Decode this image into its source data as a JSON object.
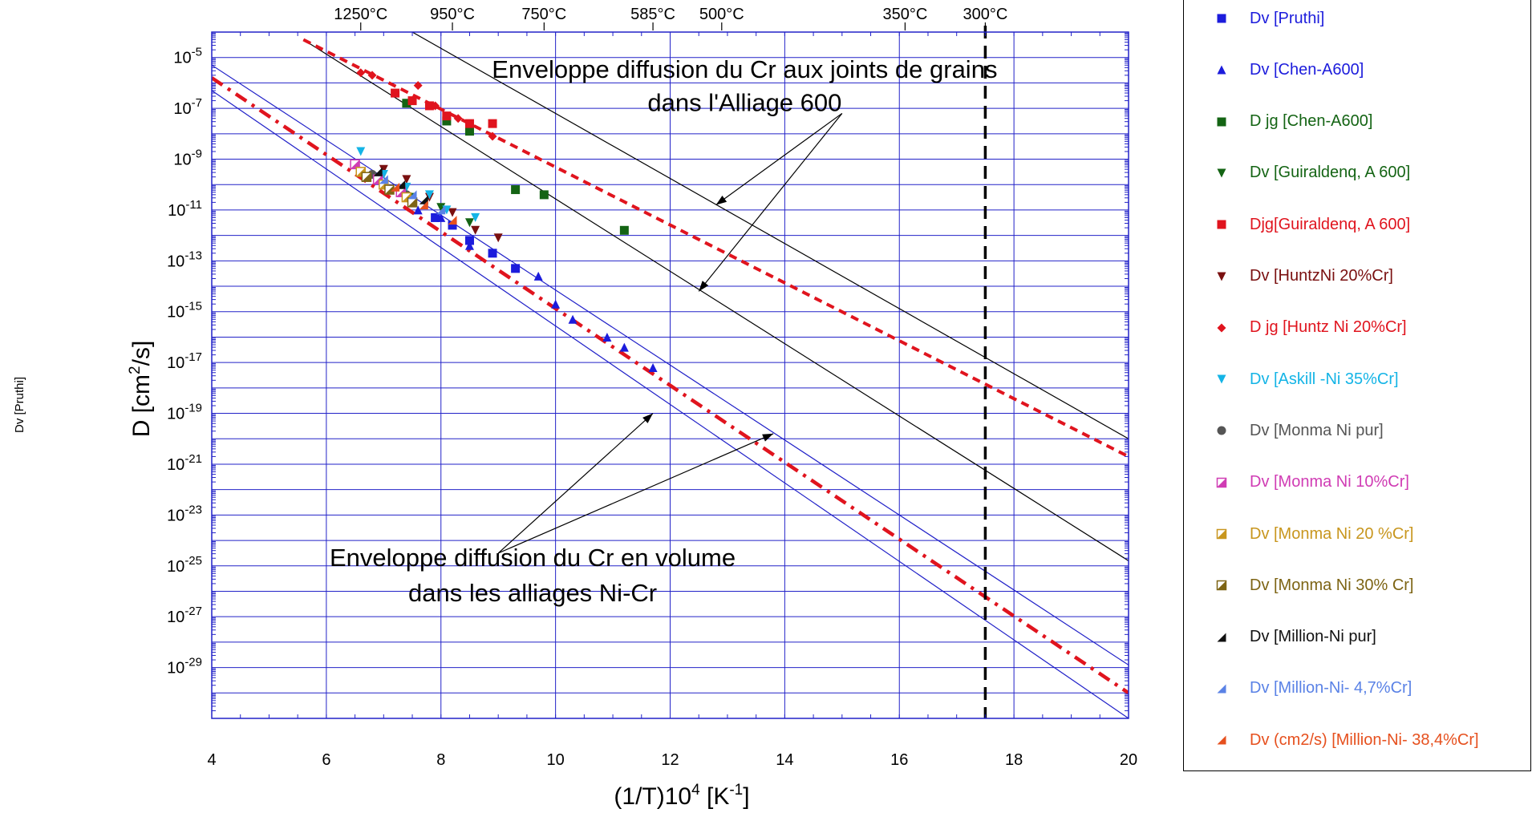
{
  "side_label": "Dv  [Pruthi]",
  "chart_data": {
    "type": "scatter",
    "xlabel": "(1/T)10",
    "xlabel_sup": "4",
    "xlabel_unit_open": " [K",
    "xlabel_unit_sup": "-1",
    "xlabel_unit_close": "]",
    "ylabel": "D [cm",
    "ylabel_sup": "2",
    "ylabel_close": "/s]",
    "xlim": [
      4,
      20
    ],
    "ylim_log10": [
      -31,
      -4
    ],
    "log_y": true,
    "grid": true,
    "x_ticks": [
      4,
      6,
      8,
      10,
      12,
      14,
      16,
      18,
      20
    ],
    "x_tick_labels": [
      "4",
      "6",
      "8",
      "10",
      "12",
      "14",
      "16",
      "18",
      "20"
    ],
    "y_tick_exponents": [
      -5,
      -7,
      -9,
      -11,
      -13,
      -15,
      -17,
      -19,
      -21,
      -23,
      -25,
      -27,
      -29
    ],
    "y_tick_labels": [
      "-5",
      "-7",
      "-9",
      "-11",
      "-13",
      "-15",
      "-17",
      "-19",
      "-21",
      "-23",
      "-25",
      "-27",
      "-29"
    ],
    "y_tick_base": "10",
    "top_axis": [
      {
        "label": "1250°C",
        "x": 6.6
      },
      {
        "label": "950°C",
        "x": 8.2
      },
      {
        "label": "750°C",
        "x": 9.8
      },
      {
        "label": "585°C",
        "x": 11.7
      },
      {
        "label": "500°C",
        "x": 12.9
      },
      {
        "label": "350°C",
        "x": 16.1
      },
      {
        "label": "300°C",
        "x": 17.5
      }
    ],
    "vertical_marker": {
      "x": 17.5,
      "color": "#000000"
    },
    "annotations": [
      {
        "text": "Enveloppe diffusion du Cr aux joints de grains",
        "x": 13.3,
        "y_log10": -5.8
      },
      {
        "text": "dans  l'Alliage 600",
        "x": 13.3,
        "y_log10": -7.1
      },
      {
        "text": "Enveloppe diffusion du Cr en volume",
        "x": 9.6,
        "y_log10": -25.0
      },
      {
        "text": "dans les alliages Ni-Cr",
        "x": 9.6,
        "y_log10": -26.4
      }
    ],
    "arrows": [
      {
        "from": [
          15.0,
          -7.2
        ],
        "to": [
          12.8,
          -10.8
        ]
      },
      {
        "from": [
          15.0,
          -7.2
        ],
        "to": [
          12.5,
          -14.2
        ]
      },
      {
        "from": [
          9.0,
          -24.5
        ],
        "to": [
          11.7,
          -19.0
        ]
      },
      {
        "from": [
          9.0,
          -24.5
        ],
        "to": [
          13.8,
          -19.8
        ]
      }
    ],
    "envelope_lines": [
      {
        "color": "#000000",
        "style": "solid",
        "points": [
          [
            7.5,
            -4.0
          ],
          [
            20.0,
            -20.0
          ]
        ]
      },
      {
        "color": "#000000",
        "style": "solid",
        "points": [
          [
            5.6,
            -4.3
          ],
          [
            20.0,
            -24.8
          ]
        ]
      },
      {
        "color": "#e0141e",
        "style": "dash",
        "points": [
          [
            5.6,
            -4.3
          ],
          [
            20.0,
            -20.7
          ]
        ]
      },
      {
        "color": "#2020c8",
        "style": "solid",
        "points": [
          [
            4.0,
            -5.3
          ],
          [
            20.0,
            -28.9
          ]
        ]
      },
      {
        "color": "#2020c8",
        "style": "solid",
        "points": [
          [
            4.0,
            -6.3
          ],
          [
            20.0,
            -31.0
          ]
        ]
      },
      {
        "color": "#e0141e",
        "style": "dashdot",
        "points": [
          [
            4.0,
            -5.8
          ],
          [
            20.0,
            -30.0
          ]
        ]
      }
    ],
    "series": [
      {
        "name": "Dv  [Pruthi]",
        "marker": "square",
        "color": "#1c1cdc",
        "points": [
          [
            7.9,
            -11.3
          ],
          [
            8.2,
            -11.6
          ],
          [
            8.5,
            -12.2
          ],
          [
            8.9,
            -12.7
          ],
          [
            9.3,
            -13.3
          ]
        ]
      },
      {
        "name": "Dv [Chen-A600]",
        "marker": "triangle-up",
        "color": "#1c1cdc",
        "points": [
          [
            7.6,
            -11.0
          ],
          [
            8.0,
            -11.3
          ],
          [
            8.5,
            -12.4
          ],
          [
            9.7,
            -13.6
          ],
          [
            10.0,
            -14.7
          ],
          [
            10.3,
            -15.3
          ],
          [
            10.9,
            -16.0
          ],
          [
            11.2,
            -16.4
          ],
          [
            11.7,
            -17.2
          ]
        ]
      },
      {
        "name": "D jg [Chen-A600]",
        "marker": "square",
        "color": "#146414",
        "points": [
          [
            7.4,
            -6.8
          ],
          [
            8.1,
            -7.5
          ],
          [
            8.5,
            -7.9
          ],
          [
            9.3,
            -10.2
          ],
          [
            9.8,
            -10.4
          ],
          [
            11.2,
            -11.8
          ]
        ]
      },
      {
        "name": "Dv [Guiraldenq,  A 600]",
        "marker": "triangle-down",
        "color": "#146414",
        "points": [
          [
            7.0,
            -9.6
          ],
          [
            7.5,
            -10.5
          ],
          [
            8.0,
            -10.9
          ],
          [
            8.5,
            -11.5
          ]
        ]
      },
      {
        "name": "Djg[Guiraldenq,  A 600]",
        "marker": "square",
        "color": "#e0141e",
        "points": [
          [
            7.2,
            -6.4
          ],
          [
            7.5,
            -6.7
          ],
          [
            7.8,
            -6.9
          ],
          [
            8.1,
            -7.3
          ],
          [
            8.5,
            -7.6
          ],
          [
            8.9,
            -7.6
          ]
        ]
      },
      {
        "name": "Dv [HuntzNi 20%Cr]",
        "marker": "triangle-down",
        "color": "#7a1010",
        "points": [
          [
            7.0,
            -9.4
          ],
          [
            7.4,
            -9.8
          ],
          [
            7.8,
            -10.5
          ],
          [
            8.2,
            -11.1
          ],
          [
            8.6,
            -11.8
          ],
          [
            9.0,
            -12.1
          ]
        ]
      },
      {
        "name": "D jg [Huntz Ni 20%Cr]",
        "marker": "diamond",
        "color": "#e0141e",
        "points": [
          [
            6.6,
            -5.6
          ],
          [
            6.8,
            -5.7
          ],
          [
            7.6,
            -6.1
          ],
          [
            7.9,
            -6.9
          ],
          [
            8.3,
            -7.4
          ],
          [
            8.9,
            -8.1
          ]
        ]
      },
      {
        "name": "Dv [Askill -Ni 35%Cr]",
        "marker": "triangle-down",
        "color": "#14b4e6",
        "points": [
          [
            6.6,
            -8.7
          ],
          [
            7.0,
            -9.6
          ],
          [
            7.4,
            -10.1
          ],
          [
            7.8,
            -10.4
          ],
          [
            8.1,
            -11.0
          ],
          [
            8.6,
            -11.3
          ]
        ]
      },
      {
        "name": "Dv [Monma Ni pur]",
        "marker": "circle",
        "color": "#555555",
        "points": [
          [
            6.8,
            -9.6
          ],
          [
            7.4,
            -10.4
          ]
        ]
      },
      {
        "name": "Dv [Monma Ni 10%Cr]",
        "marker": "square-diag",
        "color": "#d03cb4",
        "points": [
          [
            6.5,
            -9.2
          ],
          [
            6.9,
            -9.8
          ],
          [
            7.3,
            -10.3
          ]
        ]
      },
      {
        "name": "Dv [Monma Ni 20 %Cr]",
        "marker": "square-diag",
        "color": "#c8961e",
        "points": [
          [
            6.6,
            -9.5
          ],
          [
            7.0,
            -10.0
          ],
          [
            7.4,
            -10.5
          ]
        ]
      },
      {
        "name": "Dv [Monma Ni 30% Cr]",
        "marker": "square-diag",
        "color": "#7d6414",
        "points": [
          [
            6.7,
            -9.7
          ],
          [
            7.1,
            -10.2
          ],
          [
            7.5,
            -10.7
          ]
        ]
      },
      {
        "name": "Dv [Million-Ni pur]",
        "marker": "triangle-corner",
        "color": "#111111",
        "points": [
          [
            6.9,
            -9.5
          ],
          [
            7.3,
            -10.0
          ],
          [
            7.7,
            -10.6
          ]
        ]
      },
      {
        "name": "Dv [Million-Ni- 4,7%Cr]",
        "marker": "triangle-corner",
        "color": "#5a82e6",
        "points": [
          [
            7.0,
            -9.8
          ],
          [
            7.5,
            -10.4
          ],
          [
            8.0,
            -11.0
          ]
        ]
      },
      {
        "name": "Dv (cm2/s) [Million-Ni- 38,4%Cr]",
        "marker": "triangle-corner",
        "color": "#e6501e",
        "points": [
          [
            7.2,
            -10.1
          ],
          [
            7.7,
            -10.8
          ],
          [
            8.2,
            -11.4
          ]
        ]
      }
    ]
  }
}
